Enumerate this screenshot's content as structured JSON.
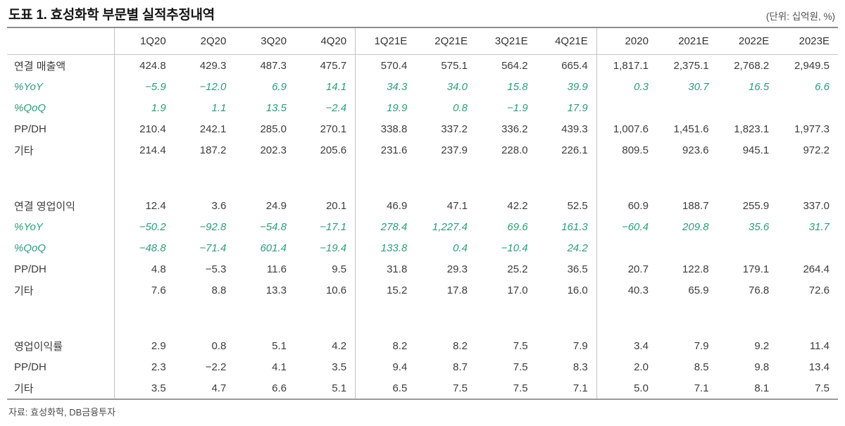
{
  "title": "도표 1. 효성화학 부문별 실적추정내역",
  "unit_note": "(단위: 십억원, %)",
  "source": "자료: 효성화학, DB금융투자",
  "colors": {
    "accent_green": "#2f9c75",
    "text": "#3c3c3c",
    "rule_gray": "#c3c3c3"
  },
  "table": {
    "columns": [
      "1Q20",
      "2Q20",
      "3Q20",
      "4Q20",
      "1Q21E",
      "2Q21E",
      "3Q21E",
      "4Q21E",
      "2020",
      "2021E",
      "2022E",
      "2023E"
    ],
    "rows": [
      {
        "label": "연결 매출액",
        "type": "normal",
        "values": [
          "424.8",
          "429.3",
          "487.3",
          "475.7",
          "570.4",
          "575.1",
          "564.2",
          "665.4",
          "1,817.1",
          "2,375.1",
          "2,768.2",
          "2,949.5"
        ]
      },
      {
        "label": "%YoY",
        "type": "green",
        "values": [
          "−5.9",
          "−12.0",
          "6.9",
          "14.1",
          "34.3",
          "34.0",
          "15.8",
          "39.9",
          "0.3",
          "30.7",
          "16.5",
          "6.6"
        ]
      },
      {
        "label": "%QoQ",
        "type": "green",
        "values": [
          "1.9",
          "1.1",
          "13.5",
          "−2.4",
          "19.9",
          "0.8",
          "−1.9",
          "17.9",
          "",
          "",
          "",
          ""
        ]
      },
      {
        "label": "PP/DH",
        "type": "normal",
        "values": [
          "210.4",
          "242.1",
          "285.0",
          "270.1",
          "338.8",
          "337.2",
          "336.2",
          "439.3",
          "1,007.6",
          "1,451.6",
          "1,823.1",
          "1,977.3"
        ]
      },
      {
        "label": "기타",
        "type": "normal",
        "values": [
          "214.4",
          "187.2",
          "202.3",
          "205.6",
          "231.6",
          "237.9",
          "228.0",
          "226.1",
          "809.5",
          "923.6",
          "945.1",
          "972.2"
        ]
      },
      {
        "label": "",
        "type": "spacer",
        "values": [
          "",
          "",
          "",
          "",
          "",
          "",
          "",
          "",
          "",
          "",
          "",
          ""
        ]
      },
      {
        "label": "연결 영업이익",
        "type": "normal",
        "values": [
          "12.4",
          "3.6",
          "24.9",
          "20.1",
          "46.9",
          "47.1",
          "42.2",
          "52.5",
          "60.9",
          "188.7",
          "255.9",
          "337.0"
        ]
      },
      {
        "label": "%YoY",
        "type": "green",
        "values": [
          "−50.2",
          "−92.8",
          "−54.8",
          "−17.1",
          "278.4",
          "1,227.4",
          "69.6",
          "161.3",
          "−60.4",
          "209.8",
          "35.6",
          "31.7"
        ]
      },
      {
        "label": "%QoQ",
        "type": "green",
        "values": [
          "−48.8",
          "−71.4",
          "601.4",
          "−19.4",
          "133.8",
          "0.4",
          "−10.4",
          "24.2",
          "",
          "",
          "",
          ""
        ]
      },
      {
        "label": "PP/DH",
        "type": "normal",
        "values": [
          "4.8",
          "−5.3",
          "11.6",
          "9.5",
          "31.8",
          "29.3",
          "25.2",
          "36.5",
          "20.7",
          "122.8",
          "179.1",
          "264.4"
        ]
      },
      {
        "label": "기타",
        "type": "normal",
        "values": [
          "7.6",
          "8.8",
          "13.3",
          "10.6",
          "15.2",
          "17.8",
          "17.0",
          "16.0",
          "40.3",
          "65.9",
          "76.8",
          "72.6"
        ]
      },
      {
        "label": "",
        "type": "spacer",
        "values": [
          "",
          "",
          "",
          "",
          "",
          "",
          "",
          "",
          "",
          "",
          "",
          ""
        ]
      },
      {
        "label": "영업이익률",
        "type": "normal",
        "values": [
          "2.9",
          "0.8",
          "5.1",
          "4.2",
          "8.2",
          "8.2",
          "7.5",
          "7.9",
          "3.4",
          "7.9",
          "9.2",
          "11.4"
        ]
      },
      {
        "label": "PP/DH",
        "type": "normal",
        "values": [
          "2.3",
          "−2.2",
          "4.1",
          "3.5",
          "9.4",
          "8.7",
          "7.5",
          "8.3",
          "2.0",
          "8.5",
          "9.8",
          "13.4"
        ]
      },
      {
        "label": "기타",
        "type": "normal",
        "values": [
          "3.5",
          "4.7",
          "6.6",
          "5.1",
          "6.5",
          "7.5",
          "7.5",
          "7.1",
          "5.0",
          "7.1",
          "8.1",
          "7.5"
        ]
      }
    ]
  }
}
